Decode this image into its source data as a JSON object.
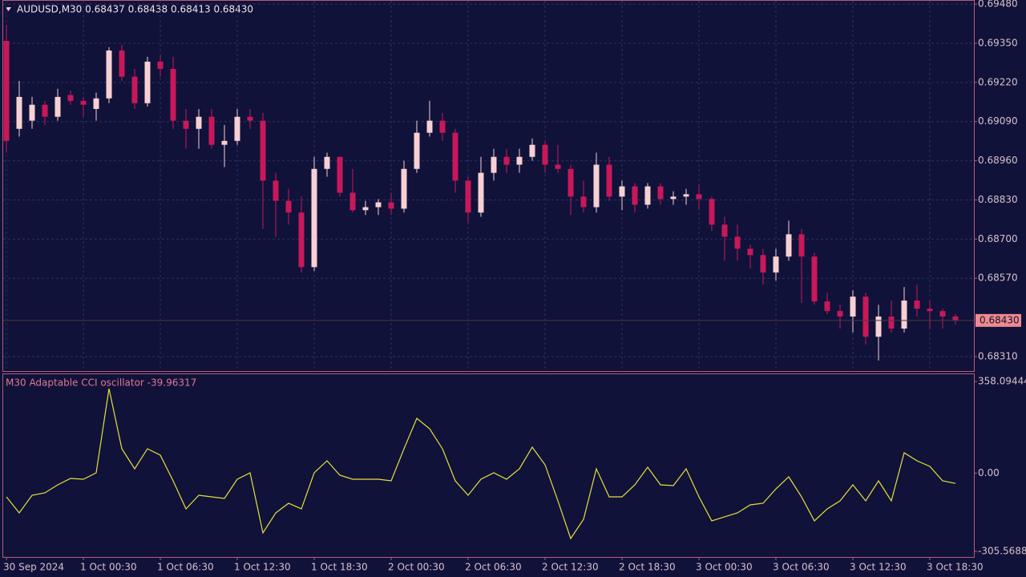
{
  "chart_data": [
    {
      "type": "candlestick",
      "title": "AUDUSD,M30  0.68437 0.68438 0.68413 0.68430",
      "categories": [
        "30 Sep 2024",
        null,
        null,
        null,
        null,
        null,
        "1 Oct 00:30",
        null,
        null,
        null,
        null,
        null,
        "1 Oct 06:30",
        null,
        null,
        null,
        null,
        null,
        "1 Oct 12:30",
        null,
        null,
        null,
        null,
        null,
        "1 Oct 18:30",
        null,
        null,
        null,
        null,
        null,
        "2 Oct 00:30",
        null,
        null,
        null,
        null,
        null,
        "2 Oct 06:30",
        null,
        null,
        null,
        null,
        null,
        "2 Oct 12:30",
        null,
        null,
        null,
        null,
        null,
        "2 Oct 18:30",
        null,
        null,
        null,
        null,
        null,
        "3 Oct 00:30",
        null,
        null,
        null,
        null,
        null,
        "3 Oct 06:30",
        null,
        null,
        null,
        null,
        null,
        "3 Oct 12:30",
        null,
        null,
        null,
        null,
        null,
        "3 Oct 18:30",
        null,
        null
      ],
      "open": [
        0.69358,
        0.69066,
        0.69093,
        0.69146,
        0.69106,
        0.69178,
        0.69159,
        0.69132,
        0.69167,
        0.69326,
        0.69239,
        0.69151,
        0.69289,
        0.69265,
        0.69093,
        0.69066,
        0.69106,
        0.69013,
        0.69026,
        0.69106,
        0.69093,
        0.68894,
        0.68827,
        0.68788,
        0.68607,
        0.68933,
        0.68973,
        0.68854,
        0.68796,
        0.68806,
        0.68822,
        0.68801,
        0.68933,
        0.69053,
        0.69093,
        0.69053,
        0.68894,
        0.68788,
        0.6892,
        0.68973,
        0.68947,
        0.68973,
        0.69013,
        0.68947,
        0.68933,
        0.68841,
        0.68806,
        0.68947,
        0.68841,
        0.68875,
        0.68814,
        0.68875,
        0.68833,
        0.68841,
        0.68849,
        0.68833,
        0.68748,
        0.68708,
        0.68668,
        0.68647,
        0.68589,
        0.68642,
        0.68716,
        0.68642,
        0.68493,
        0.68461,
        0.68443,
        0.68509,
        0.68376,
        0.68443,
        0.68403,
        0.68496,
        0.68469,
        0.68461,
        0.68443
      ],
      "high": [
        0.69411,
        0.69225,
        0.69172,
        0.69159,
        0.69199,
        0.69193,
        0.69172,
        0.69186,
        0.69337,
        0.69345,
        0.69265,
        0.69305,
        0.6931,
        0.69305,
        0.69132,
        0.69132,
        0.69132,
        0.69079,
        0.69132,
        0.69132,
        0.69119,
        0.6892,
        0.68867,
        0.68841,
        0.68973,
        0.68987,
        0.68973,
        0.68933,
        0.68827,
        0.68833,
        0.68854,
        0.6896,
        0.69093,
        0.69159,
        0.69119,
        0.69066,
        0.68907,
        0.68973,
        0.69,
        0.69,
        0.69,
        0.69034,
        0.69026,
        0.69013,
        0.68947,
        0.68894,
        0.68987,
        0.68973,
        0.68894,
        0.68886,
        0.68886,
        0.68886,
        0.68859,
        0.68867,
        0.6888,
        0.68841,
        0.68774,
        0.68748,
        0.68681,
        0.68668,
        0.68668,
        0.68761,
        0.68734,
        0.68655,
        0.68522,
        0.68482,
        0.6853,
        0.68522,
        0.68482,
        0.68496,
        0.68541,
        0.68549,
        0.68496,
        0.68469,
        0.68451
      ],
      "low": [
        0.68987,
        0.6904,
        0.69066,
        0.69079,
        0.69093,
        0.69146,
        0.69106,
        0.69093,
        0.69151,
        0.69225,
        0.69132,
        0.6914,
        0.69239,
        0.69066,
        0.69,
        0.69,
        0.69,
        0.68939,
        0.69013,
        0.69066,
        0.68734,
        0.68708,
        0.68748,
        0.68589,
        0.68594,
        0.68907,
        0.68841,
        0.68788,
        0.6878,
        0.6878,
        0.6878,
        0.68788,
        0.6892,
        0.6904,
        0.69026,
        0.68854,
        0.68753,
        0.68774,
        0.68894,
        0.6892,
        0.6892,
        0.6896,
        0.6892,
        0.6892,
        0.6878,
        0.68788,
        0.68788,
        0.68827,
        0.68796,
        0.68788,
        0.68801,
        0.68814,
        0.68814,
        0.68814,
        0.68796,
        0.68727,
        0.68628,
        0.68628,
        0.68602,
        0.68549,
        0.68562,
        0.68628,
        0.68488,
        0.68482,
        0.68451,
        0.68403,
        0.6839,
        0.6835,
        0.68297,
        0.6839,
        0.6839,
        0.68443,
        0.68403,
        0.68403,
        0.68416
      ],
      "close": [
        0.69026,
        0.69172,
        0.69146,
        0.69106,
        0.69172,
        0.69159,
        0.69146,
        0.69167,
        0.69326,
        0.69239,
        0.69151,
        0.69289,
        0.69265,
        0.69093,
        0.69066,
        0.69106,
        0.69013,
        0.69026,
        0.69106,
        0.69093,
        0.68894,
        0.68827,
        0.68788,
        0.68607,
        0.68933,
        0.68973,
        0.68854,
        0.68796,
        0.68806,
        0.68822,
        0.68801,
        0.68933,
        0.69053,
        0.69093,
        0.69053,
        0.68894,
        0.68788,
        0.6892,
        0.68973,
        0.68947,
        0.68973,
        0.69013,
        0.68947,
        0.68933,
        0.68841,
        0.68806,
        0.68947,
        0.68841,
        0.68875,
        0.68814,
        0.68875,
        0.68833,
        0.68841,
        0.68849,
        0.68833,
        0.68748,
        0.68708,
        0.68668,
        0.68647,
        0.68589,
        0.68642,
        0.68716,
        0.68642,
        0.68493,
        0.68461,
        0.68443,
        0.68509,
        0.68376,
        0.68443,
        0.68403,
        0.68496,
        0.68469,
        0.68461,
        0.68443,
        0.6843
      ],
      "up_color": "#f7d0d3",
      "down_color": "#c8185a",
      "ylim": [
        0.68262,
        0.69491
      ],
      "yticks": [
        {
          "value": 0.6948,
          "label": "0.69480"
        },
        {
          "value": 0.6935,
          "label": "0.69350"
        },
        {
          "value": 0.6922,
          "label": "0.69220"
        },
        {
          "value": 0.6909,
          "label": "0.69090"
        },
        {
          "value": 0.6896,
          "label": "0.68960"
        },
        {
          "value": 0.6883,
          "label": "0.68830"
        },
        {
          "value": 0.687,
          "label": "0.68700"
        },
        {
          "value": 0.6857,
          "label": "0.68570"
        },
        {
          "value": 0.6831,
          "label": "0.68310"
        }
      ],
      "grid": true,
      "last_price": {
        "value": 0.6843,
        "label": "0.68430"
      }
    },
    {
      "type": "line",
      "title": "M30 Adaptable CCI oscillator -39.96317",
      "values": [
        -92.7,
        -155.3,
        -86.4,
        -77.0,
        -45.7,
        -20.7,
        -23.8,
        1.3,
        330.0,
        95.2,
        16.9,
        95.2,
        70.1,
        -30.1,
        -139.6,
        -86.4,
        -92.7,
        -98.9,
        -23.8,
        1.3,
        -233.5,
        -155.3,
        -117.7,
        -139.6,
        1.3,
        48.2,
        -8.1,
        -23.8,
        -23.8,
        -23.8,
        -30.1,
        95.2,
        214.1,
        173.4,
        95.2,
        -30.1,
        -86.4,
        -23.8,
        1.3,
        -23.8,
        16.9,
        101.4,
        32.6,
        -108.3,
        -255.4,
        -180.3,
        16.9,
        -92.7,
        -92.7,
        -45.7,
        23.2,
        -45.7,
        -48.8,
        16.9,
        -92.7,
        -186.6,
        -170.9,
        -155.3,
        -124.0,
        -117.7,
        -61.4,
        -14.4,
        -92.7,
        -186.6,
        -139.6,
        -108.3,
        -45.7,
        -108.3,
        -30.1,
        -108.3,
        79.5,
        48.2,
        26.3,
        -30.1,
        -39.96317
      ],
      "color": "#e6e03a",
      "ylim": [
        -305.5688,
        358.09444
      ],
      "yticks": [
        358.09444,
        {
          "value": 0,
          "label": "0.00"
        },
        -305.5688
      ]
    }
  ]
}
